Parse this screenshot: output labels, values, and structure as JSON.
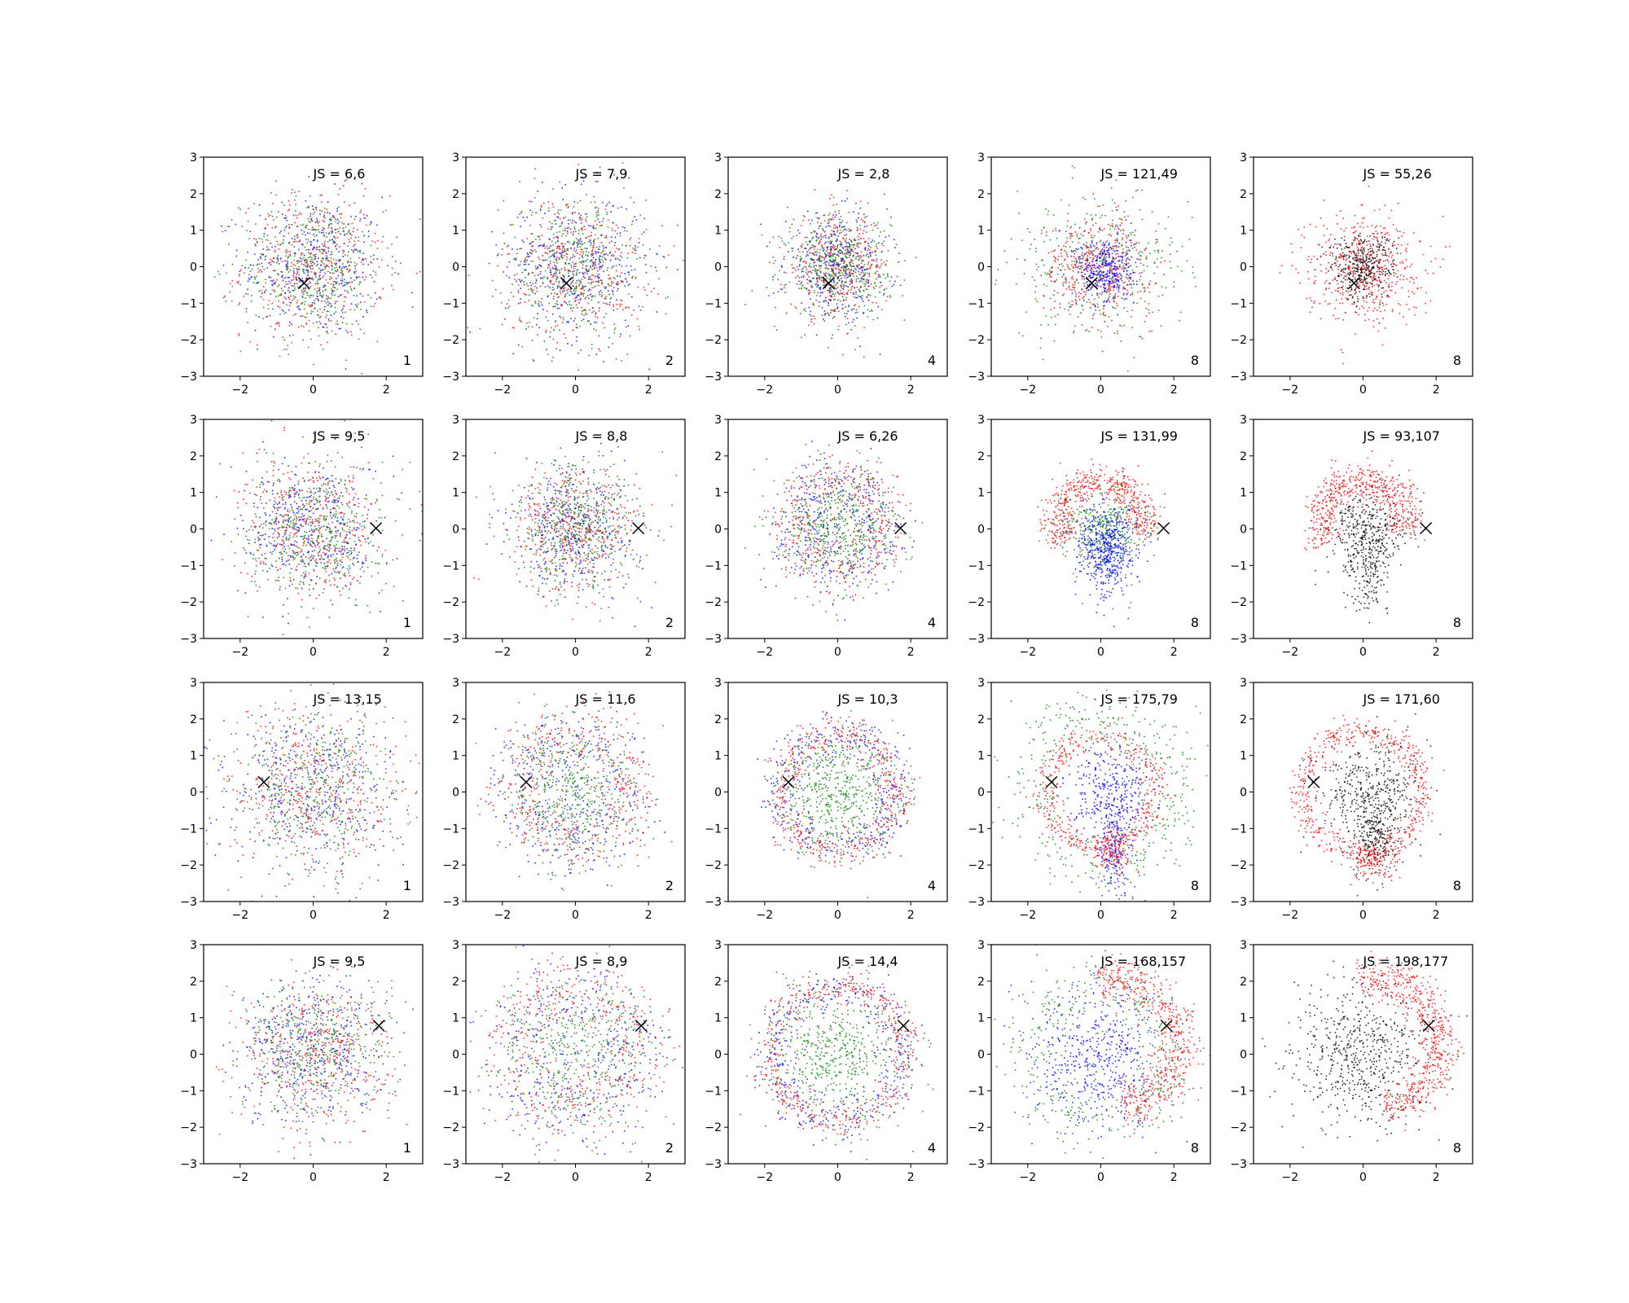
{
  "chart_data": {
    "type": "scatter",
    "layout": {
      "rows": 4,
      "cols": 5
    },
    "xlim": [
      -3,
      3
    ],
    "ylim": [
      -3,
      3
    ],
    "xticks": [
      -2,
      0,
      2
    ],
    "yticks": [
      -3,
      -2,
      -1,
      0,
      1,
      2,
      3
    ],
    "grid": false,
    "legend": "none",
    "colors": {
      "red": "#ff0000",
      "green": "#008000",
      "blue": "#0000ff",
      "black": "#000000"
    },
    "marker_points": [
      [
        -0.25,
        -0.45
      ],
      [
        1.72,
        0.02
      ],
      [
        -1.35,
        0.27
      ],
      [
        1.8,
        0.78
      ]
    ],
    "panels": [
      {
        "row": 0,
        "col": 0,
        "js": "JS = 6,6",
        "corner": "1",
        "marker": [
          -0.25,
          -0.45
        ],
        "style": "mix3",
        "radius": 1.25
      },
      {
        "row": 0,
        "col": 1,
        "js": "JS = 7,9",
        "corner": "2",
        "marker": [
          -0.25,
          -0.45
        ],
        "style": "mix3",
        "radius": 1.25
      },
      {
        "row": 0,
        "col": 2,
        "js": "JS = 2,8",
        "corner": "4",
        "marker": [
          -0.25,
          -0.45
        ],
        "style": "mix3small",
        "radius": 0.9
      },
      {
        "row": 0,
        "col": 3,
        "js": "JS = 121,49",
        "corner": "8",
        "marker": [
          -0.25,
          -0.45
        ],
        "style": "blob",
        "radius": 1.0
      },
      {
        "row": 0,
        "col": 4,
        "js": "JS = 55,26",
        "corner": "8",
        "marker": [
          -0.25,
          -0.45
        ],
        "style": "redblack_center",
        "radius": 1.0
      },
      {
        "row": 1,
        "col": 0,
        "js": "JS = 9,5",
        "corner": "1",
        "marker": [
          1.72,
          0.02
        ],
        "style": "mix3",
        "radius": 1.2
      },
      {
        "row": 1,
        "col": 1,
        "js": "JS = 8,8",
        "corner": "2",
        "marker": [
          1.72,
          0.02
        ],
        "style": "mix3",
        "radius": 1.1
      },
      {
        "row": 1,
        "col": 2,
        "js": "JS = 6,26",
        "corner": "4",
        "marker": [
          1.72,
          0.02
        ],
        "style": "mix3ring",
        "radius": 1.35
      },
      {
        "row": 1,
        "col": 3,
        "js": "JS = 131,99",
        "corner": "8",
        "marker": [
          1.72,
          0.02
        ],
        "style": "horseshoe",
        "radius": 1.3
      },
      {
        "row": 1,
        "col": 4,
        "js": "JS = 93,107",
        "corner": "8",
        "marker": [
          1.72,
          0.02
        ],
        "style": "horseshoe_black",
        "radius": 1.3
      },
      {
        "row": 2,
        "col": 0,
        "js": "JS = 13,15",
        "corner": "1",
        "marker": [
          -1.35,
          0.27
        ],
        "style": "mix3",
        "radius": 1.5
      },
      {
        "row": 2,
        "col": 1,
        "js": "JS = 11,6",
        "corner": "2",
        "marker": [
          -1.35,
          0.27
        ],
        "style": "mix3ring",
        "radius": 1.6
      },
      {
        "row": 2,
        "col": 2,
        "js": "JS = 10,3",
        "corner": "4",
        "marker": [
          -1.35,
          0.27
        ],
        "style": "ring_green",
        "radius": 1.9
      },
      {
        "row": 2,
        "col": 3,
        "js": "JS = 175,79",
        "corner": "8",
        "marker": [
          -1.35,
          0.27
        ],
        "style": "ring_bigblue",
        "radius": 1.9
      },
      {
        "row": 2,
        "col": 4,
        "js": "JS = 171,60",
        "corner": "8",
        "marker": [
          -1.35,
          0.27
        ],
        "style": "ring_black",
        "radius": 1.9
      },
      {
        "row": 3,
        "col": 0,
        "js": "JS = 9,5",
        "corner": "1",
        "marker": [
          1.8,
          0.78
        ],
        "style": "mix3",
        "radius": 1.3
      },
      {
        "row": 3,
        "col": 1,
        "js": "JS = 8,9",
        "corner": "2",
        "marker": [
          1.8,
          0.78
        ],
        "style": "mix3ring",
        "radius": 1.8
      },
      {
        "row": 3,
        "col": 2,
        "js": "JS = 14,4",
        "corner": "4",
        "marker": [
          1.8,
          0.78
        ],
        "style": "ring_green",
        "radius": 2.2
      },
      {
        "row": 3,
        "col": 3,
        "js": "JS = 168,157",
        "corner": "8",
        "marker": [
          1.8,
          0.78
        ],
        "style": "crescent_blue",
        "radius": 2.0
      },
      {
        "row": 3,
        "col": 4,
        "js": "JS = 198,177",
        "corner": "8",
        "marker": [
          1.8,
          0.78
        ],
        "style": "crescent_black",
        "radius": 2.0
      }
    ]
  }
}
